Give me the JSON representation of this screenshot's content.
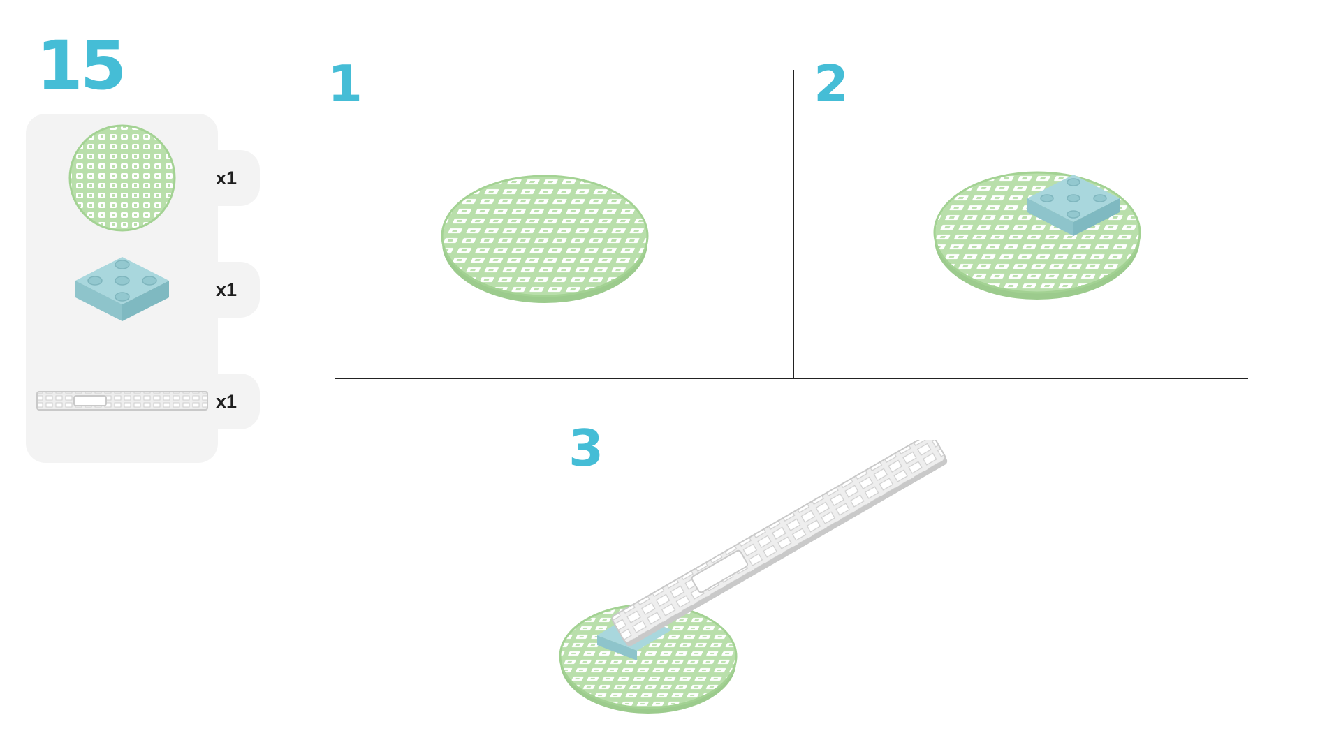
{
  "page": {
    "number": "15"
  },
  "colors": {
    "accent": "#45bdd6",
    "disc_top": "#b9dfab",
    "disc_edge": "#9ccb8d",
    "disc_hole": "#ffffff",
    "plate_top": "#a9d7dd",
    "plate_side": "#8ec4cb",
    "bar_top": "#eeeeee",
    "bar_edge": "#c9c9c9",
    "panel_bg": "#f3f3f3",
    "divider": "#222222"
  },
  "parts": [
    {
      "icon": "grid-disc-icon",
      "quantity": "x1"
    },
    {
      "icon": "square-plate-icon",
      "quantity": "x1"
    },
    {
      "icon": "grid-bar-icon",
      "quantity": "x1"
    }
  ],
  "steps": [
    {
      "number": "1"
    },
    {
      "number": "2"
    },
    {
      "number": "3"
    }
  ]
}
